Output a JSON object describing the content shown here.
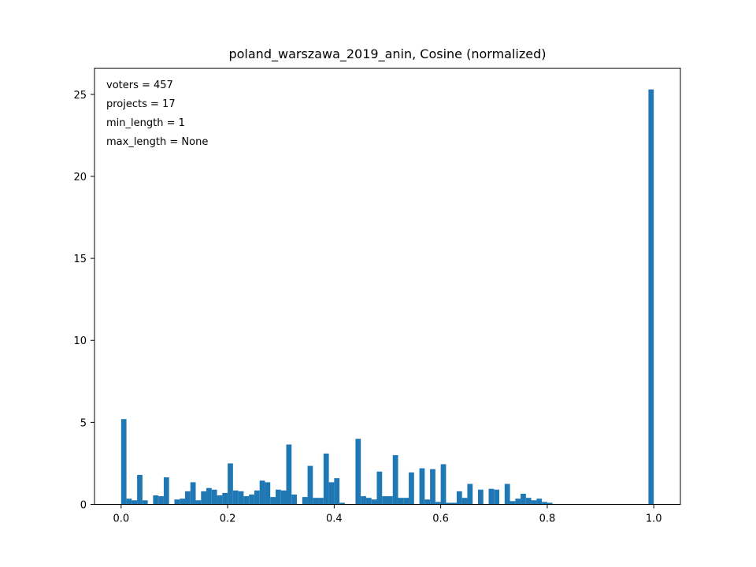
{
  "chart_data": {
    "type": "bar",
    "title": "poland_warszawa_2019_anin, Cosine (normalized)",
    "xlabel": "",
    "ylabel": "",
    "xlim": [
      -0.05,
      1.05
    ],
    "ylim": [
      0,
      26.6
    ],
    "x_ticks": [
      0.0,
      0.2,
      0.4,
      0.6,
      0.8,
      1.0
    ],
    "x_tick_labels": [
      "0.0",
      "0.2",
      "0.4",
      "0.6",
      "0.8",
      "1.0"
    ],
    "y_ticks": [
      0,
      5,
      10,
      15,
      20,
      25
    ],
    "y_tick_labels": [
      "0",
      "5",
      "10",
      "15",
      "20",
      "25"
    ],
    "bin_width": 0.01,
    "color": "#1f77b4",
    "bins_start": [
      0.0,
      0.01,
      0.02,
      0.03,
      0.04,
      0.05,
      0.06,
      0.07,
      0.08,
      0.09,
      0.1,
      0.11,
      0.12,
      0.13,
      0.14,
      0.15,
      0.16,
      0.17,
      0.18,
      0.19,
      0.2,
      0.21,
      0.22,
      0.23,
      0.24,
      0.25,
      0.26,
      0.27,
      0.28,
      0.29,
      0.3,
      0.31,
      0.32,
      0.33,
      0.34,
      0.35,
      0.36,
      0.37,
      0.38,
      0.39,
      0.4,
      0.41,
      0.42,
      0.43,
      0.44,
      0.45,
      0.46,
      0.47,
      0.48,
      0.49,
      0.5,
      0.51,
      0.52,
      0.53,
      0.54,
      0.55,
      0.56,
      0.57,
      0.58,
      0.59,
      0.6,
      0.61,
      0.62,
      0.63,
      0.64,
      0.65,
      0.66,
      0.67,
      0.68,
      0.69,
      0.7,
      0.71,
      0.72,
      0.73,
      0.74,
      0.75,
      0.76,
      0.77,
      0.78,
      0.79,
      0.8,
      0.81,
      0.99
    ],
    "values": [
      5.2,
      0.35,
      0.25,
      1.8,
      0.25,
      0.0,
      0.55,
      0.5,
      1.65,
      0.0,
      0.3,
      0.35,
      0.8,
      1.35,
      0.25,
      0.8,
      1.0,
      0.9,
      0.55,
      0.7,
      2.5,
      0.85,
      0.8,
      0.5,
      0.6,
      0.85,
      1.45,
      1.35,
      0.45,
      0.9,
      0.85,
      3.65,
      0.6,
      0.0,
      0.45,
      2.35,
      0.4,
      0.4,
      3.1,
      1.35,
      1.6,
      0.1,
      0.0,
      0.0,
      4.0,
      0.5,
      0.4,
      0.3,
      2.0,
      0.5,
      0.5,
      3.0,
      0.4,
      0.4,
      1.95,
      0.0,
      2.2,
      0.3,
      2.15,
      0.15,
      2.45,
      0.1,
      0.1,
      0.8,
      0.4,
      1.25,
      0.0,
      0.9,
      0.0,
      0.95,
      0.9,
      0.0,
      1.25,
      0.2,
      0.35,
      0.65,
      0.4,
      0.25,
      0.35,
      0.15,
      0.1,
      0.0,
      25.3
    ],
    "annotations": [
      "voters = 457",
      "projects = 17",
      "min_length = 1",
      "max_length = None"
    ]
  }
}
